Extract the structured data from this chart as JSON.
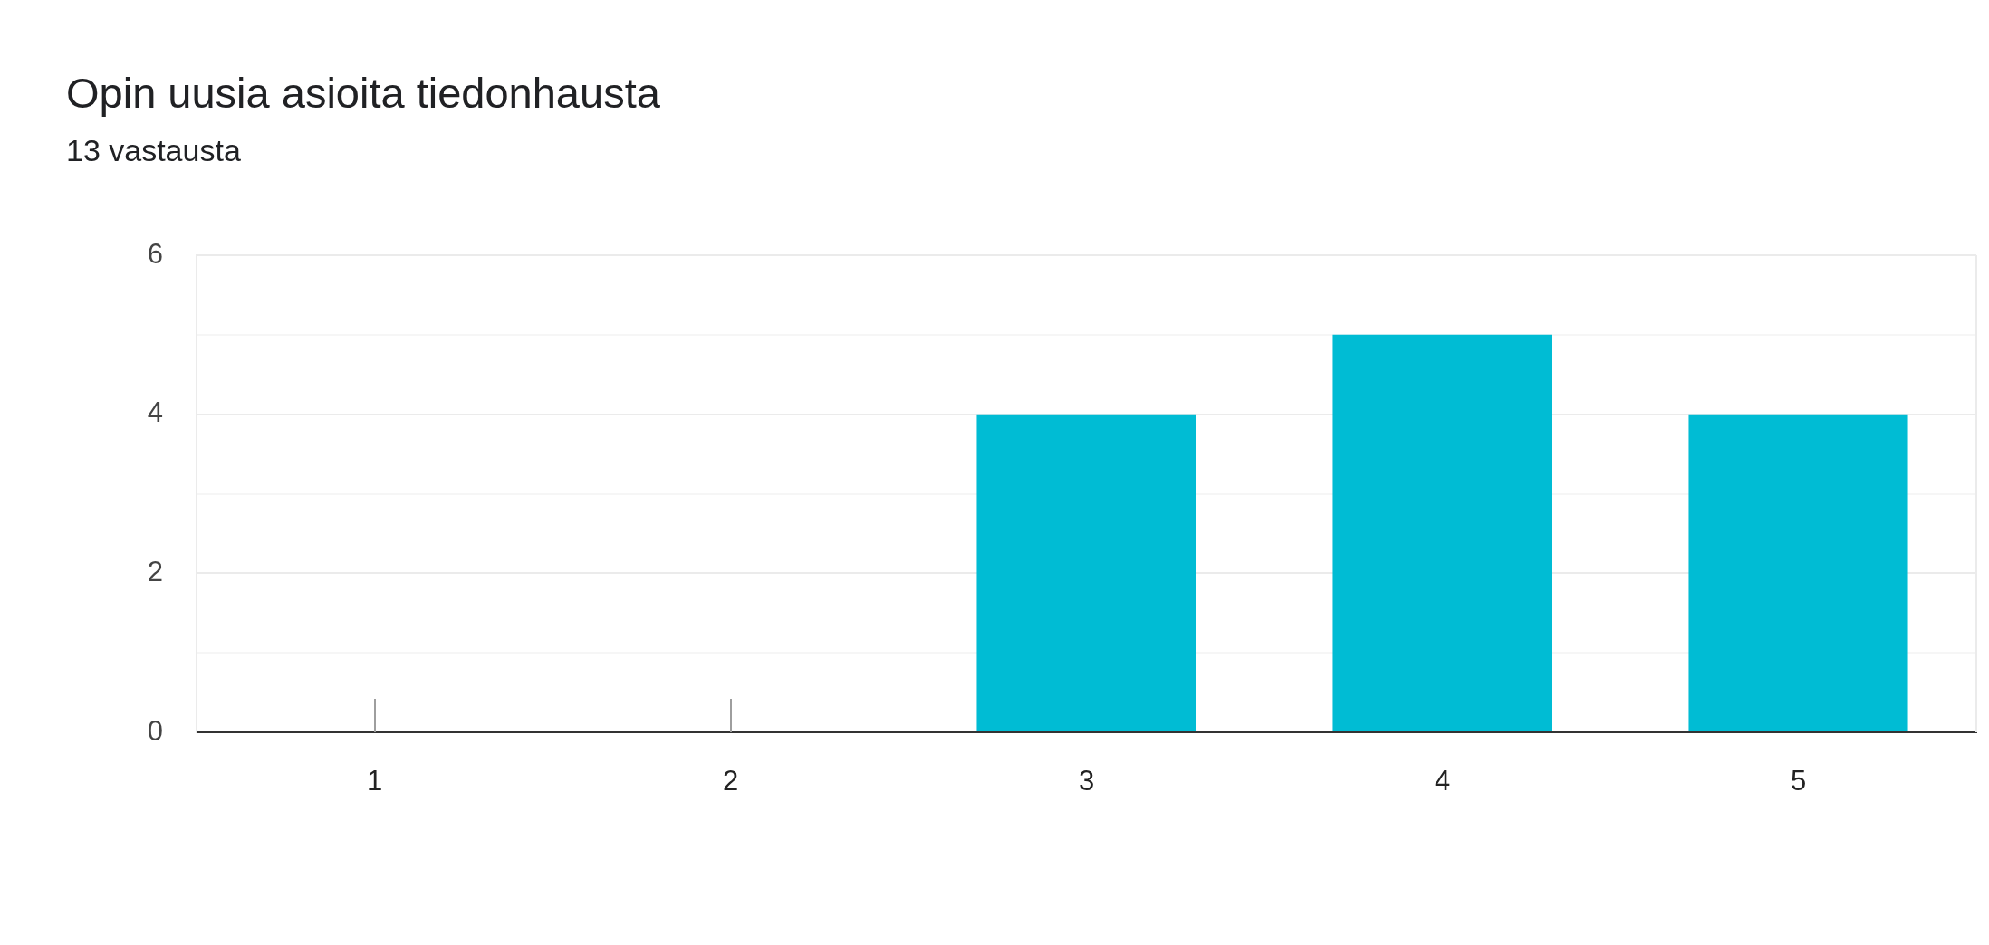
{
  "chart_data": {
    "type": "bar",
    "title": "Opin uusia asioita tiedonhausta",
    "subtitle": "13 vastausta",
    "categories": [
      "1",
      "2",
      "3",
      "4",
      "5"
    ],
    "values": [
      0,
      0,
      4,
      5,
      4
    ],
    "color": "#00bcd4",
    "ylim": [
      0,
      6
    ],
    "yticks": [
      0,
      {
        "value": 1,
        "label": null
      },
      2,
      {
        "value": 3,
        "label": null
      },
      4,
      {
        "value": 5,
        "label": null
      },
      6
    ],
    "grid": true
  }
}
